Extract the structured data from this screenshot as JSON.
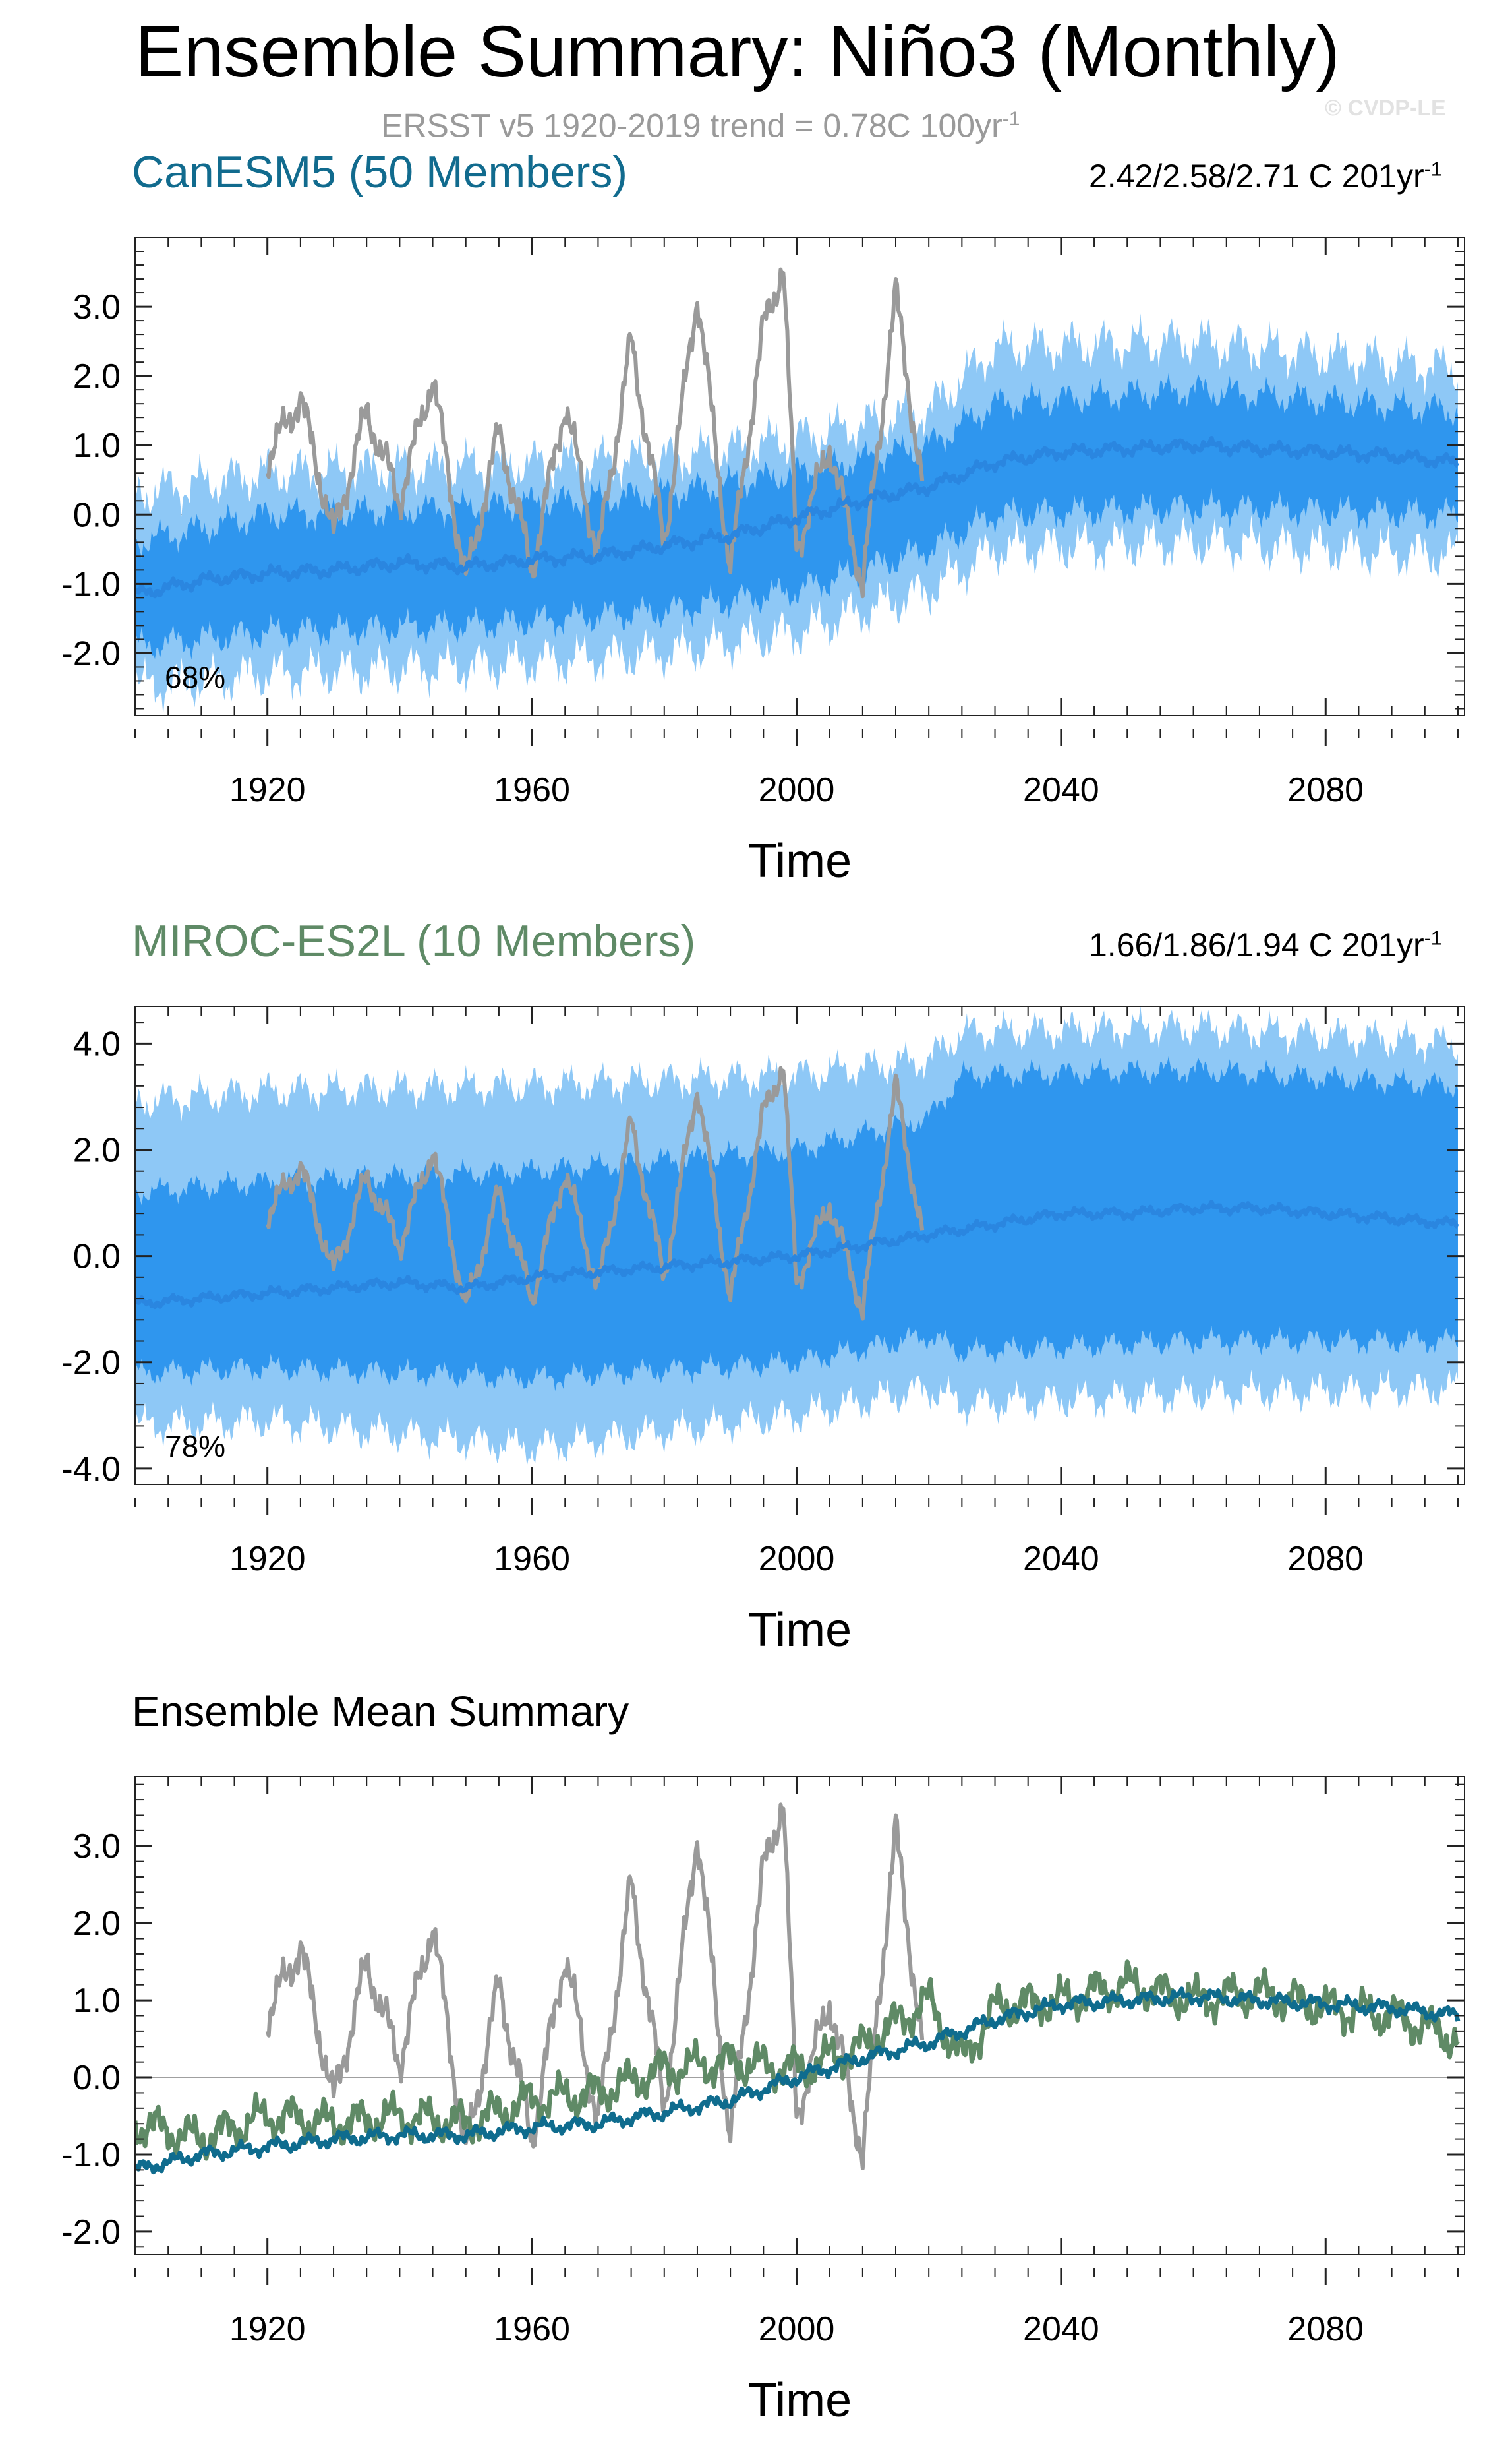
{
  "page": {
    "title": "Ensemble Summary: Niño3 (Monthly)",
    "subtitle": "ERSST v5 1920-2019 trend = 0.78C 100yr",
    "subtitle_superscript": "-1",
    "watermark": "© CVDP-LE",
    "xlabel": "Time"
  },
  "colors": {
    "obs": "#9a9a9a",
    "canesm5_title": "#116b8e",
    "miroc_title": "#5f8a66",
    "ens_light": "#8ec8f6",
    "ens_mid": "#2f96ee",
    "ens_mean": "#2a86e0",
    "canesm5_mean": "#0f6c8e",
    "miroc_mean": "#5f8a66",
    "zero_line": "#a0a0a0"
  },
  "chart_data": [
    {
      "type": "line",
      "panel_title": "CanESM5 (50 Members)",
      "trend_text": "2.42/2.58/2.71 C 201yr",
      "trend_superscript": "-1",
      "percent_label": "68%",
      "xlim": [
        1900,
        2101
      ],
      "ylim": [
        -2.9,
        4.0
      ],
      "xticks": [
        1920,
        1960,
        2000,
        2040,
        2080
      ],
      "yticks": [
        -2.0,
        -1.0,
        0.0,
        1.0,
        2.0,
        3.0
      ],
      "ytick_labels": [
        "-2.0",
        "-1.0",
        "0.0",
        "1.0",
        "2.0",
        "3.0"
      ],
      "zero_line": 0,
      "series": [
        {
          "role": "ensemble_mean",
          "x": [
            1900,
            1910,
            1920,
            1930,
            1940,
            1950,
            1960,
            1970,
            1980,
            1990,
            2000,
            2010,
            2020,
            2030,
            2040,
            2050,
            2060,
            2070,
            2080,
            2090,
            2100
          ],
          "values": [
            -1.15,
            -0.95,
            -0.85,
            -0.8,
            -0.7,
            -0.75,
            -0.65,
            -0.6,
            -0.45,
            -0.3,
            -0.05,
            0.2,
            0.4,
            0.75,
            0.9,
            0.95,
            1.0,
            0.95,
            0.9,
            0.85,
            0.75
          ]
        },
        {
          "role": "ensemble_range_2sd",
          "x": [
            1900,
            1920,
            1950,
            1980,
            2000,
            2020,
            2030,
            2060,
            2100
          ],
          "low": [
            -2.5,
            -2.3,
            -2.2,
            -2.0,
            -1.7,
            -1.1,
            -0.5,
            -0.4,
            -0.6
          ],
          "high": [
            0.3,
            0.6,
            0.7,
            0.8,
            1.1,
            1.5,
            2.4,
            2.5,
            2.1
          ]
        },
        {
          "role": "ensemble_range_1sd",
          "x": [
            1900,
            1920,
            1950,
            1980,
            2000,
            2020,
            2030,
            2060,
            2100
          ],
          "low": [
            -1.9,
            -1.7,
            -1.6,
            -1.4,
            -1.1,
            -0.5,
            0.0,
            0.1,
            0.0
          ],
          "high": [
            -0.4,
            0.0,
            0.1,
            0.3,
            0.6,
            1.0,
            1.6,
            1.8,
            1.5
          ]
        },
        {
          "role": "observed",
          "x": [
            1920,
            1925,
            1930,
            1935,
            1940,
            1945,
            1950,
            1955,
            1960,
            1965,
            1970,
            1975,
            1980,
            1985,
            1990,
            1995,
            1998,
            2000,
            2005,
            2010,
            2015,
            2019
          ],
          "values": [
            0.8,
            1.7,
            -0.3,
            1.5,
            0.2,
            2.0,
            -1.0,
            1.2,
            -0.8,
            1.6,
            -0.6,
            2.5,
            -0.4,
            3.2,
            -0.8,
            2.7,
            3.6,
            -0.5,
            1.0,
            -1.0,
            3.2,
            0.4
          ]
        }
      ]
    },
    {
      "type": "line",
      "panel_title": "MIROC-ES2L (10 Members)",
      "trend_text": "1.66/1.86/1.94 C 201yr",
      "trend_superscript": "-1",
      "percent_label": "78%",
      "xlim": [
        1900,
        2101
      ],
      "ylim": [
        -4.3,
        4.7
      ],
      "xticks": [
        1920,
        1960,
        2000,
        2040,
        2080
      ],
      "yticks": [
        -4.0,
        -2.0,
        0.0,
        2.0,
        4.0
      ],
      "ytick_labels": [
        "-4.0",
        "-2.0",
        "0.0",
        "2.0",
        "4.0"
      ],
      "zero_line": 0,
      "series": [
        {
          "role": "ensemble_mean",
          "x": [
            1900,
            1910,
            1920,
            1930,
            1940,
            1950,
            1960,
            1970,
            1980,
            1990,
            2000,
            2010,
            2020,
            2030,
            2040,
            2050,
            2060,
            2070,
            2080,
            2090,
            2100
          ],
          "values": [
            -0.9,
            -0.8,
            -0.7,
            -0.6,
            -0.5,
            -0.6,
            -0.4,
            -0.3,
            -0.2,
            -0.1,
            0.0,
            0.2,
            0.4,
            0.6,
            0.8,
            0.8,
            0.9,
            0.9,
            0.8,
            0.7,
            0.6
          ]
        },
        {
          "role": "ensemble_range_2sd",
          "x": [
            1900,
            1920,
            1960,
            2000,
            2020,
            2025,
            2060,
            2100
          ],
          "low": [
            -3.2,
            -3.1,
            -3.6,
            -3.0,
            -2.5,
            -2.8,
            -2.6,
            -2.5
          ],
          "high": [
            2.9,
            3.1,
            3.2,
            3.4,
            3.7,
            4.2,
            4.3,
            4.0
          ]
        },
        {
          "role": "ensemble_range_1sd",
          "x": [
            1900,
            1920,
            1960,
            2000,
            2020,
            2025,
            2060,
            2100
          ],
          "low": [
            -2.2,
            -2.1,
            -2.3,
            -2.0,
            -1.5,
            -1.8,
            -1.6,
            -1.6
          ],
          "high": [
            1.2,
            1.4,
            1.6,
            2.0,
            2.6,
            3.4,
            3.5,
            3.2
          ]
        },
        {
          "role": "observed",
          "x": [
            1920,
            1925,
            1930,
            1935,
            1940,
            1945,
            1950,
            1955,
            1960,
            1965,
            1970,
            1975,
            1980,
            1985,
            1990,
            1995,
            1998,
            2000,
            2005,
            2010,
            2015,
            2019
          ],
          "values": [
            0.8,
            1.7,
            -0.3,
            1.5,
            0.2,
            2.0,
            -1.0,
            1.2,
            -0.8,
            1.6,
            -0.6,
            2.5,
            -0.4,
            3.2,
            -0.8,
            2.7,
            3.6,
            -0.5,
            1.0,
            -1.0,
            3.2,
            0.4
          ]
        }
      ]
    },
    {
      "type": "line",
      "panel_title": "Ensemble Mean Summary",
      "xlim": [
        1900,
        2101
      ],
      "ylim": [
        -2.3,
        3.9
      ],
      "xticks": [
        1920,
        1960,
        2000,
        2040,
        2080
      ],
      "yticks": [
        -2.0,
        -1.0,
        0.0,
        1.0,
        2.0,
        3.0
      ],
      "ytick_labels": [
        "-2.0",
        "-1.0",
        "0.0",
        "1.0",
        "2.0",
        "3.0"
      ],
      "zero_line": 0,
      "series": [
        {
          "role": "observed",
          "x": [
            1920,
            1925,
            1930,
            1935,
            1940,
            1945,
            1950,
            1955,
            1960,
            1965,
            1970,
            1975,
            1980,
            1985,
            1990,
            1995,
            1998,
            2000,
            2005,
            2010,
            2015,
            2019
          ],
          "values": [
            0.8,
            1.7,
            -0.3,
            1.5,
            0.2,
            2.0,
            -1.0,
            1.2,
            -0.8,
            1.6,
            -0.6,
            2.5,
            -0.4,
            3.2,
            -0.8,
            2.7,
            3.6,
            -0.5,
            1.0,
            -1.0,
            3.2,
            0.4
          ]
        },
        {
          "role": "miroc_mean",
          "x": [
            1900,
            1910,
            1920,
            1930,
            1940,
            1950,
            1960,
            1970,
            1980,
            1990,
            2000,
            2010,
            2020,
            2025,
            2030,
            2040,
            2050,
            2060,
            2070,
            2080,
            2090,
            2100
          ],
          "values": [
            -0.6,
            -0.8,
            -0.5,
            -0.6,
            -0.5,
            -0.6,
            -0.3,
            -0.2,
            0.1,
            0.2,
            0.1,
            0.4,
            1.0,
            0.2,
            0.9,
            1.0,
            1.2,
            1.0,
            1.1,
            0.9,
            0.8,
            0.5
          ]
        },
        {
          "role": "canesm5_mean",
          "x": [
            1900,
            1910,
            1920,
            1930,
            1940,
            1950,
            1960,
            1970,
            1980,
            1990,
            2000,
            2010,
            2020,
            2030,
            2040,
            2050,
            2060,
            2070,
            2080,
            2090,
            2100
          ],
          "values": [
            -1.2,
            -1.0,
            -0.9,
            -0.8,
            -0.75,
            -0.75,
            -0.65,
            -0.6,
            -0.45,
            -0.3,
            0.0,
            0.25,
            0.45,
            0.75,
            0.95,
            1.0,
            1.05,
            1.0,
            0.95,
            0.9,
            0.8
          ]
        }
      ]
    }
  ]
}
